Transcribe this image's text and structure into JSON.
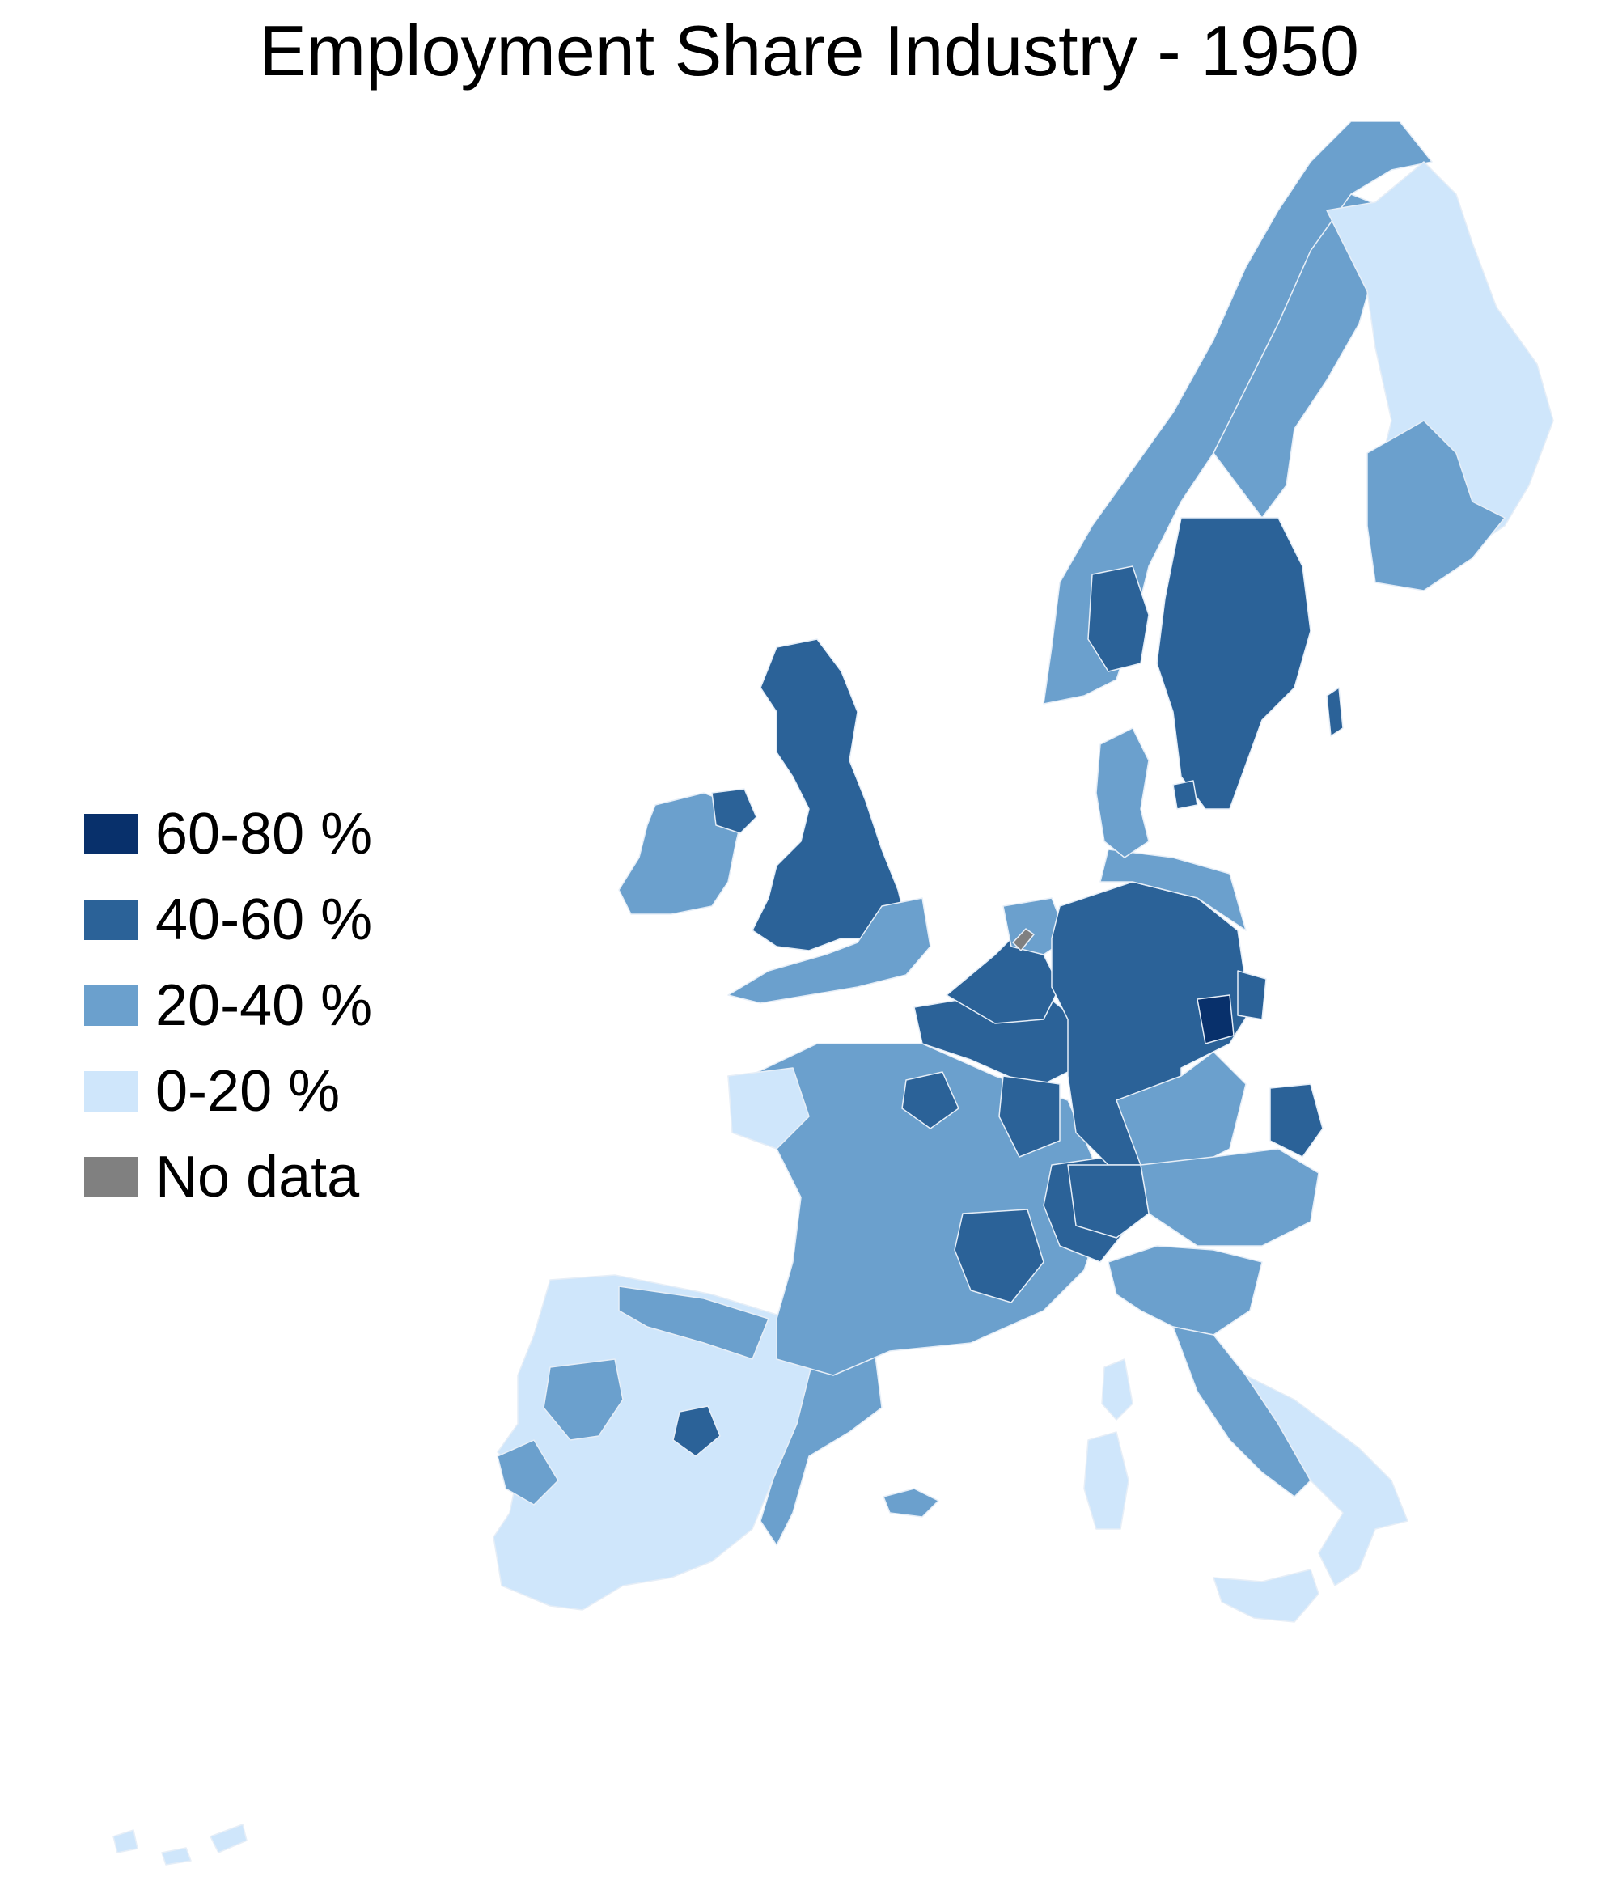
{
  "title": "Employment Share Industry - 1950",
  "legend": [
    {
      "label": "60-80 %",
      "color": "#08306b"
    },
    {
      "label": "40-60 %",
      "color": "#2b6298"
    },
    {
      "label": "20-40 %",
      "color": "#6ba0cd"
    },
    {
      "label": "0-20 %",
      "color": "#cfe6fb"
    },
    {
      "label": "No data",
      "color": "#808080"
    }
  ]
}
